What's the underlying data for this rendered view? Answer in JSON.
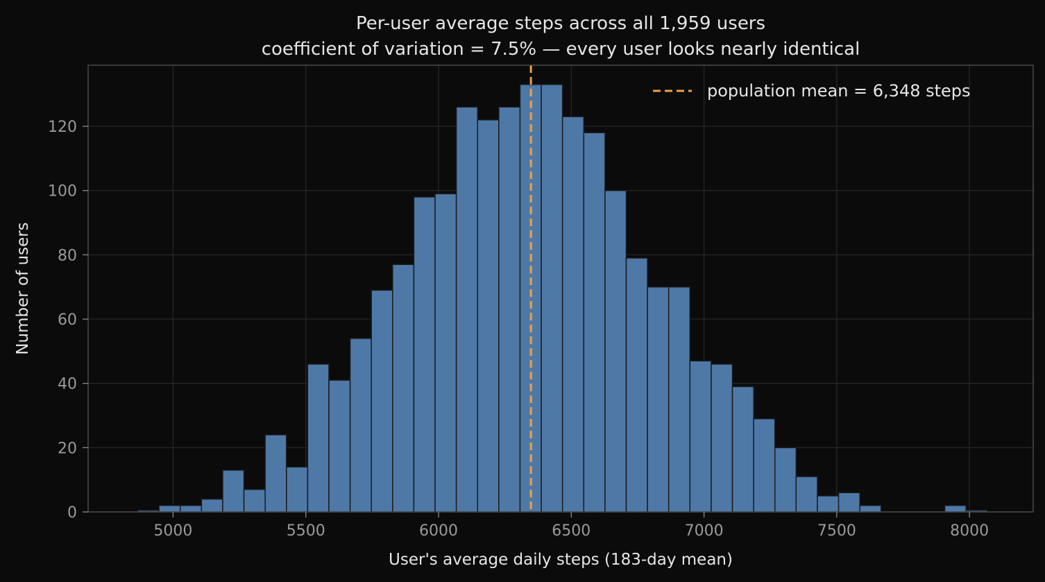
{
  "chart_data": {
    "type": "bar",
    "title": "Per-user average steps across all 1,959 users",
    "subtitle": "coefficient of variation = 7.5% — every user looks nearly identical",
    "xlabel": "User's average daily steps (183-day mean)",
    "ylabel": "Number of users",
    "xlim": [
      4680,
      8240
    ],
    "ylim": [
      0,
      139
    ],
    "x_ticks": [
      5000,
      5500,
      6000,
      6500,
      7000,
      7500,
      8000
    ],
    "y_ticks": [
      0,
      20,
      40,
      60,
      80,
      100,
      120
    ],
    "x_tick_labels": [
      "5000",
      "5500",
      "6000",
      "6500",
      "7000",
      "7500",
      "8000"
    ],
    "y_tick_labels": [
      "0",
      "20",
      "40",
      "60",
      "80",
      "100",
      "120"
    ],
    "grid": true,
    "bar_color": "#4e79a7",
    "bin_width": 80,
    "bins": [
      {
        "start": 4867,
        "count": 0.5
      },
      {
        "start": 4947,
        "count": 2
      },
      {
        "start": 5027,
        "count": 2
      },
      {
        "start": 5107,
        "count": 4
      },
      {
        "start": 5187,
        "count": 13
      },
      {
        "start": 5267,
        "count": 7
      },
      {
        "start": 5347,
        "count": 24
      },
      {
        "start": 5427,
        "count": 14
      },
      {
        "start": 5507,
        "count": 46
      },
      {
        "start": 5587,
        "count": 41
      },
      {
        "start": 5667,
        "count": 54
      },
      {
        "start": 5747,
        "count": 69
      },
      {
        "start": 5827,
        "count": 77
      },
      {
        "start": 5907,
        "count": 98
      },
      {
        "start": 5987,
        "count": 99
      },
      {
        "start": 6067,
        "count": 126
      },
      {
        "start": 6147,
        "count": 122
      },
      {
        "start": 6227,
        "count": 126
      },
      {
        "start": 6307,
        "count": 133
      },
      {
        "start": 6387,
        "count": 133
      },
      {
        "start": 6467,
        "count": 123
      },
      {
        "start": 6547,
        "count": 118
      },
      {
        "start": 6627,
        "count": 100
      },
      {
        "start": 6707,
        "count": 79
      },
      {
        "start": 6787,
        "count": 70
      },
      {
        "start": 6867,
        "count": 70
      },
      {
        "start": 6947,
        "count": 47
      },
      {
        "start": 7027,
        "count": 46
      },
      {
        "start": 7107,
        "count": 39
      },
      {
        "start": 7187,
        "count": 29
      },
      {
        "start": 7267,
        "count": 20
      },
      {
        "start": 7347,
        "count": 11
      },
      {
        "start": 7427,
        "count": 5
      },
      {
        "start": 7507,
        "count": 6
      },
      {
        "start": 7587,
        "count": 2
      },
      {
        "start": 7667,
        "count": 0
      },
      {
        "start": 7747,
        "count": 0
      },
      {
        "start": 7827,
        "count": 0
      },
      {
        "start": 7907,
        "count": 2
      },
      {
        "start": 7987,
        "count": 0.5
      }
    ],
    "mean_line": {
      "value": 6348,
      "color": "#f0a040",
      "label": "population mean = 6,348 steps"
    },
    "legend_position": "top-right"
  }
}
